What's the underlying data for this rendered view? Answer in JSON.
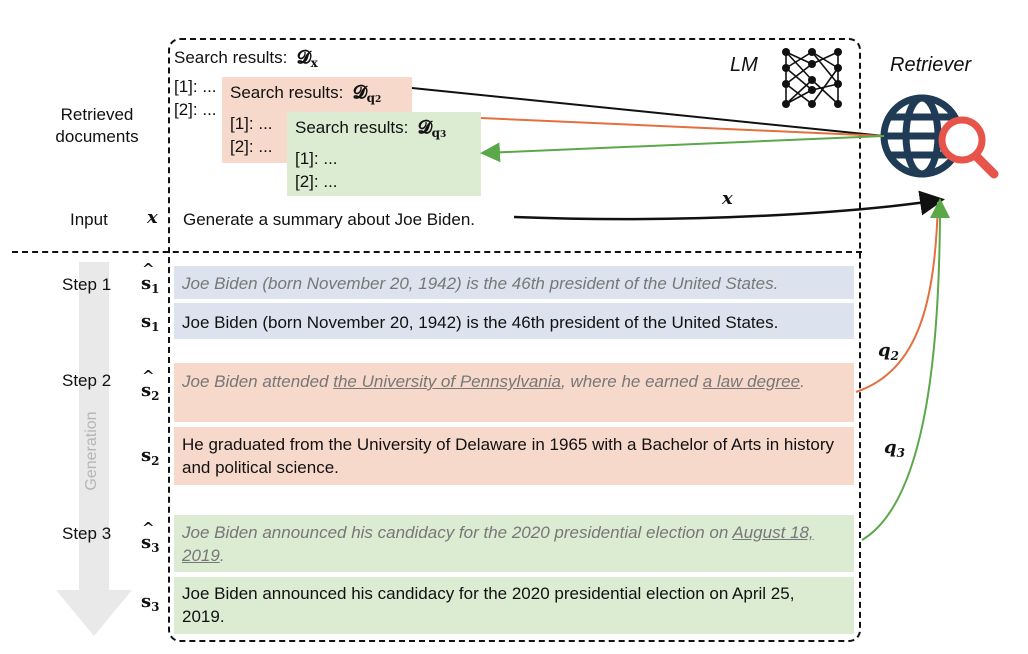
{
  "left_labels": {
    "retrieved": "Retrieved documents",
    "input": "Input",
    "step1": "Step 1",
    "step2": "Step 2",
    "step3": "Step 3",
    "generation": "Generation"
  },
  "symbols": {
    "x": "x",
    "s": "s",
    "q": "q",
    "D": "𝓓",
    "sub1": "1",
    "sub2": "2",
    "sub3": "3",
    "subx": "x"
  },
  "header": {
    "lm": "LM",
    "retriever": "Retriever"
  },
  "search": {
    "title": "Search results:",
    "item1": "[1]: ...",
    "item2": "[2]: ..."
  },
  "input_text": "Generate a summary about Joe Biden.",
  "steps": {
    "s1_hat": "Joe Biden (born November 20, 1942) is the 46th president of the United States.",
    "s1": "Joe Biden (born November 20, 1942) is the 46th president of the United States.",
    "s2_hat_a": "Joe Biden attended ",
    "s2_hat_u1": "the University of Pennsylvania",
    "s2_hat_b": ", where he earned ",
    "s2_hat_u2": "a law degree",
    "s2_hat_c": ".",
    "s2": "He graduated from the University of Delaware in 1965 with a Bachelor of Arts in history and political science.",
    "s3_hat_a": "Joe Biden announced his candidacy for the 2020 presidential election on ",
    "s3_hat_u": "August 18, 2019",
    "s3_hat_c": ".",
    "s3": "Joe Biden announced his candidacy for the 2020 presidential election on April 25, 2019."
  },
  "colors": {
    "blue": "#dce3ef",
    "orange": "#f7d9cc",
    "green": "#dcecd3",
    "orange_line": "#e4703e",
    "green_line": "#5aa84a",
    "retriever_icon": "#1f3b55",
    "magnifier": "#e8534a"
  }
}
